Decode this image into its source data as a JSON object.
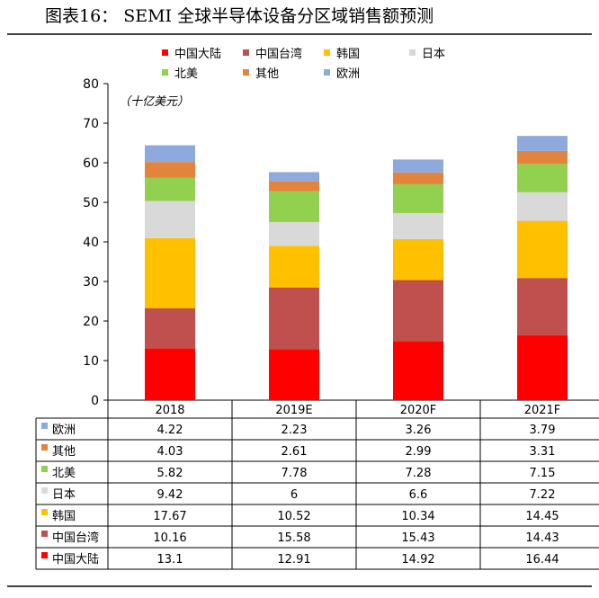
{
  "figure_title": "图表16：    SEMI 全球半导体设备分区域销售额预测",
  "chart_data": {
    "type": "bar",
    "stacked": true,
    "title": "SEMI 全球半导体设备分区域销售额预测",
    "unit_label": "（十亿美元）",
    "categories": [
      "2018",
      "2019E",
      "2020F",
      "2021F"
    ],
    "ylim": [
      0,
      80
    ],
    "yticks": [
      0,
      10,
      20,
      30,
      40,
      50,
      60,
      70,
      80
    ],
    "legend_position": "top",
    "series": [
      {
        "name": "中国大陆",
        "color": "#FF0000",
        "values": [
          13.1,
          12.91,
          14.92,
          16.44
        ],
        "labels": [
          "13.1",
          "12.91",
          "14.92",
          "16.44"
        ]
      },
      {
        "name": "中国台湾",
        "color": "#C0504D",
        "values": [
          10.16,
          15.58,
          15.43,
          14.43
        ],
        "labels": [
          "10.16",
          "15.58",
          "15.43",
          "14.43"
        ]
      },
      {
        "name": "韩国",
        "color": "#FFC000",
        "values": [
          17.67,
          10.52,
          10.34,
          14.45
        ],
        "labels": [
          "17.67",
          "10.52",
          "10.34",
          "14.45"
        ]
      },
      {
        "name": "日本",
        "color": "#D9D9D9",
        "values": [
          9.42,
          6,
          6.6,
          7.22
        ],
        "labels": [
          "9.42",
          "6",
          "6.6",
          "7.22"
        ]
      },
      {
        "name": "北美",
        "color": "#92D050",
        "values": [
          5.82,
          7.78,
          7.28,
          7.15
        ],
        "labels": [
          "5.82",
          "7.78",
          "7.28",
          "7.15"
        ]
      },
      {
        "name": "其他",
        "color": "#E2843B",
        "values": [
          4.03,
          2.61,
          2.99,
          3.31
        ],
        "labels": [
          "4.03",
          "2.61",
          "2.99",
          "3.31"
        ]
      },
      {
        "name": "欧洲",
        "color": "#8EA9DB",
        "values": [
          4.22,
          2.23,
          3.26,
          3.79
        ],
        "labels": [
          "4.22",
          "2.23",
          "3.26",
          "3.79"
        ]
      }
    ]
  }
}
